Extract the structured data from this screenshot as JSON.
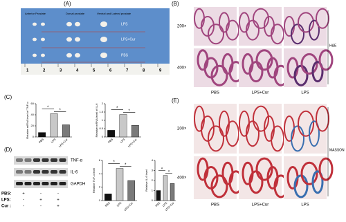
{
  "panels": {
    "A": "(A)",
    "B": "(B)",
    "C": "(C)",
    "D": "(D)",
    "E": "(E)"
  },
  "photo": {
    "headers": [
      "Anterior Prostate",
      "Dorsal prostate",
      "Ventral and Lateral prostate"
    ],
    "rows": [
      "LPS",
      "LPS+Cur",
      "PBS"
    ],
    "ruler": [
      "1",
      "2",
      "3",
      "4",
      "5",
      "6",
      "7",
      "8",
      "9"
    ]
  },
  "he": {
    "magnifications": [
      "200×",
      "400×"
    ],
    "groups": [
      "PBS",
      "LPS+Cur",
      "LPS"
    ],
    "stain": "H&E"
  },
  "masson": {
    "magnifications": [
      "200×",
      "400×"
    ],
    "groups": [
      "PBS",
      "LPS+Cur",
      "LPS"
    ],
    "stain": "MASSON"
  },
  "blot": {
    "proteins": [
      "TNF-α",
      "IL-6",
      "GAPDH"
    ],
    "conditions": [
      {
        "name": "PBS:",
        "signs": [
          "+",
          "-",
          "-"
        ]
      },
      {
        "name": "LPS:",
        "signs": [
          "-",
          "+",
          "+"
        ]
      },
      {
        "name": "Cur :",
        "signs": [
          "-",
          "-",
          "+"
        ]
      }
    ]
  },
  "chart_data": [
    {
      "type": "bar",
      "y_label": "Relative mRNA level of TNF-α",
      "categories": [
        "PBS",
        "LPS",
        "LPS+Cur"
      ],
      "values": [
        8,
        42,
        22
      ],
      "colors": [
        "#111111",
        "#c8c8c8",
        "#7a7a7a"
      ],
      "ylim": [
        0,
        60
      ],
      "yticks": [
        0,
        20,
        40,
        60
      ],
      "significance": [
        "*",
        "*"
      ]
    },
    {
      "type": "bar",
      "y_label": "Relative mRNA level of IL-6",
      "categories": [
        "PBS",
        "LPS",
        "LPS+Cur"
      ],
      "values": [
        0.4,
        1.35,
        0.7
      ],
      "colors": [
        "#111111",
        "#c8c8c8",
        "#7a7a7a"
      ],
      "ylim": [
        0,
        2
      ],
      "yticks": [
        0,
        0.5,
        1,
        1.5,
        2
      ],
      "significance": [
        "*",
        "*"
      ]
    },
    {
      "type": "bar",
      "y_label": "Relative TNF-α level",
      "categories": [
        "PBS",
        "LPS",
        "LPS+Cur"
      ],
      "values": [
        1,
        4.8,
        3
      ],
      "colors": [
        "#111111",
        "#c8c8c8",
        "#7a7a7a"
      ],
      "ylim": [
        0,
        6
      ],
      "yticks": [
        0,
        2,
        4,
        6
      ],
      "significance": [
        "*",
        "*"
      ]
    },
    {
      "type": "bar",
      "y_label": "Relative IL-6 level",
      "categories": [
        "PBS",
        "LPS",
        "LPS+Cur"
      ],
      "values": [
        1,
        2.5,
        1.7
      ],
      "colors": [
        "#111111",
        "#c8c8c8",
        "#7a7a7a"
      ],
      "ylim": [
        0,
        4
      ],
      "yticks": [
        0,
        1,
        2,
        3,
        4
      ],
      "significance": [
        "*",
        "*"
      ]
    }
  ]
}
